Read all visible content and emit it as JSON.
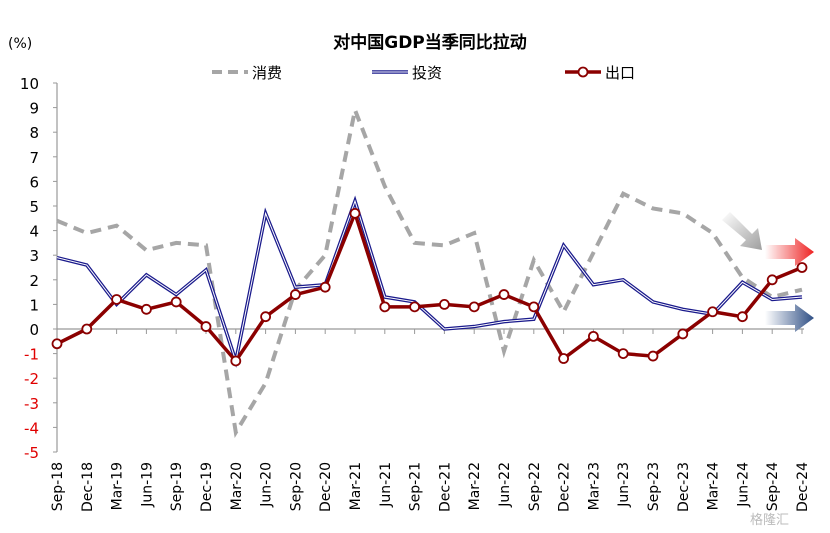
{
  "chart_data": {
    "type": "line",
    "title": "对中国GDP当季同比拉动",
    "ylabel": "(%)",
    "xlabel": "",
    "ylim": [
      -5,
      10
    ],
    "yticks": [
      -5,
      -4,
      -3,
      -2,
      -1,
      0,
      1,
      2,
      3,
      4,
      5,
      6,
      7,
      8,
      9,
      10
    ],
    "legend_position": "top",
    "categories": [
      "Sep-18",
      "Dec-18",
      "Mar-19",
      "Jun-19",
      "Sep-19",
      "Dec-19",
      "Mar-20",
      "Jun-20",
      "Sep-20",
      "Dec-20",
      "Mar-21",
      "Jun-21",
      "Sep-21",
      "Dec-21",
      "Mar-22",
      "Jun-22",
      "Sep-22",
      "Dec-22",
      "Mar-23",
      "Jun-23",
      "Sep-23",
      "Dec-23",
      "Mar-24",
      "Jun-24",
      "Sep-24",
      "Dec-24"
    ],
    "series": [
      {
        "name": "消费",
        "color": "#a6a6a6",
        "style": "dashed",
        "values": [
          4.4,
          3.9,
          4.2,
          3.2,
          3.5,
          3.4,
          -4.2,
          -2.2,
          1.6,
          3.0,
          8.9,
          5.8,
          3.5,
          3.4,
          3.9,
          -0.9,
          2.8,
          0.7,
          3.1,
          5.5,
          4.9,
          4.7,
          3.9,
          2.1,
          1.3,
          1.6
        ]
      },
      {
        "name": "投资",
        "color": "#1a1a8c",
        "style": "double",
        "values": [
          2.9,
          2.6,
          1.0,
          2.2,
          1.4,
          2.4,
          -1.3,
          4.7,
          1.7,
          1.8,
          5.2,
          1.3,
          1.1,
          0.0,
          0.1,
          0.3,
          0.4,
          3.4,
          1.8,
          2.0,
          1.1,
          0.8,
          0.6,
          1.9,
          1.2,
          1.3
        ]
      },
      {
        "name": "出口",
        "color": "#8b0000",
        "style": "marker",
        "values": [
          -0.6,
          0.0,
          1.2,
          0.8,
          1.1,
          0.1,
          -1.3,
          0.5,
          1.4,
          1.7,
          4.7,
          0.9,
          0.9,
          1.0,
          0.9,
          1.4,
          0.9,
          -1.2,
          -0.3,
          -1.0,
          -1.1,
          -0.2,
          0.7,
          0.5,
          2.0,
          2.5
        ]
      }
    ],
    "negative_tick_color": "#e00000",
    "watermark": "格隆汇"
  }
}
